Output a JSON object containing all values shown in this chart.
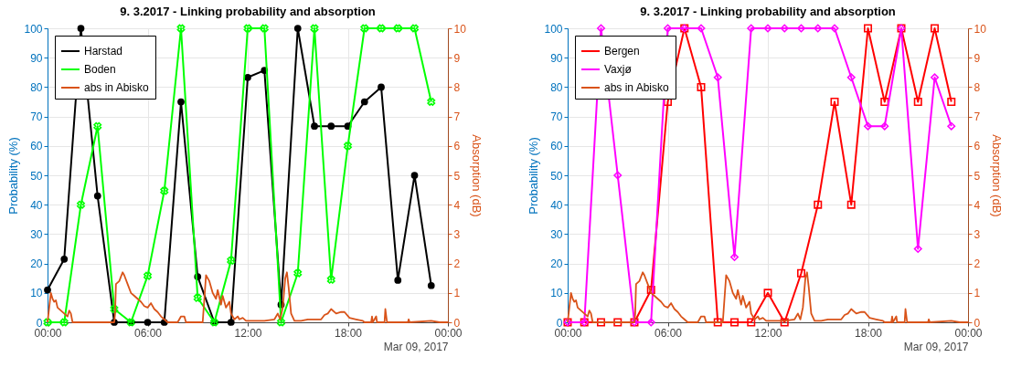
{
  "chart_data": [
    {
      "type": "line",
      "title": "9. 3.2017 - Linking probability and absorption",
      "ylabel": "Probability (%)",
      "y2label": "Absorption (dB)",
      "annotations": [
        "Mar 09, 2017"
      ],
      "xlim": [
        0,
        24
      ],
      "xticks": [
        {
          "value": 0,
          "label": "00:00"
        },
        {
          "value": 6,
          "label": "06:00"
        },
        {
          "value": 12,
          "label": "12:00"
        },
        {
          "value": 18,
          "label": "18:00"
        },
        {
          "value": 24,
          "label": "00:00"
        }
      ],
      "ylim": [
        0,
        100
      ],
      "yticks": [
        0,
        10,
        20,
        30,
        40,
        50,
        60,
        70,
        80,
        90,
        100
      ],
      "y2lim": [
        0,
        10
      ],
      "y2ticks": [
        0,
        1,
        2,
        3,
        4,
        5,
        6,
        7,
        8,
        9,
        10
      ],
      "grid": true,
      "legend": "top left",
      "x": [
        0,
        1,
        2,
        3,
        4,
        5,
        6,
        7,
        8,
        9,
        10,
        11,
        12,
        13,
        14,
        15,
        16,
        17,
        18,
        19,
        20,
        21,
        22,
        23
      ],
      "series": [
        {
          "name": "Harstad",
          "color": "#000000",
          "marker": "circle",
          "values": [
            11,
            21.5,
            100,
            43,
            0,
            0,
            0,
            0,
            75,
            15.5,
            0,
            0,
            83.3,
            85.7,
            6,
            100,
            66.7,
            66.7,
            66.7,
            75,
            80,
            14.3,
            50,
            12.5
          ]
        },
        {
          "name": "Boden",
          "color": "#00ff00",
          "marker": "cross",
          "values": [
            0,
            0,
            40,
            66.7,
            4.5,
            0,
            15.8,
            44.7,
            100,
            8.3,
            0,
            21,
            100,
            100,
            0,
            16.7,
            100,
            14.5,
            60,
            100,
            100,
            100,
            100,
            75
          ]
        },
        {
          "name": "abs in Abisko",
          "color": "#d95319",
          "marker": "none",
          "axis": "y2",
          "x": [
            0,
            0.1,
            0.2,
            0.3,
            0.4,
            0.5,
            0.6,
            0.8,
            1.0,
            1.2,
            1.3,
            1.4,
            1.5,
            4.0,
            4.05,
            4.1,
            4.3,
            4.5,
            4.6,
            4.8,
            5.0,
            5.2,
            5.4,
            5.6,
            5.8,
            6.0,
            6.2,
            6.4,
            6.6,
            6.8,
            7.0,
            7.2,
            7.8,
            8.0,
            8.2,
            8.3,
            9.3,
            9.4,
            9.5,
            9.7,
            9.9,
            10.1,
            10.2,
            10.4,
            10.5,
            10.7,
            10.9,
            11.0,
            11.2,
            11.4,
            11.5,
            11.7,
            11.9,
            12.2,
            13.0,
            13.6,
            13.8,
            13.95,
            14.1,
            14.25,
            14.35,
            14.45,
            14.6,
            14.8,
            15.2,
            15.6,
            16.0,
            16.4,
            16.6,
            16.8,
            17.0,
            17.3,
            17.6,
            17.8,
            18.1,
            18.5,
            18.9,
            19.0,
            19.4,
            19.45,
            19.5,
            19.7,
            19.75,
            20.2,
            20.25,
            20.35,
            21.6,
            21.65,
            21.7,
            23.0,
            23.5,
            24
          ],
          "values": [
            0,
            0.5,
            1.0,
            0.8,
            0.7,
            0.75,
            0.5,
            0.4,
            0.3,
            0.2,
            0.4,
            0.3,
            0,
            0,
            0.3,
            1.3,
            1.4,
            1.7,
            1.6,
            1.3,
            1.0,
            0.9,
            0.8,
            0.7,
            0.55,
            0.5,
            0.65,
            0.45,
            0.35,
            0.2,
            0.1,
            0,
            0,
            0.2,
            0.2,
            0,
            0,
            0.8,
            1.6,
            1.4,
            1.0,
            0.8,
            1.1,
            0.6,
            0.9,
            0.5,
            0.7,
            0.3,
            0.1,
            0.2,
            0.1,
            0.15,
            0.05,
            0.05,
            0.05,
            0.1,
            0.3,
            0.1,
            0.5,
            1.5,
            1.7,
            1.2,
            0.3,
            0.05,
            0.05,
            0.1,
            0.1,
            0.1,
            0.25,
            0.3,
            0.45,
            0.3,
            0.35,
            0.35,
            0.15,
            0.1,
            0.05,
            0,
            0,
            0.2,
            0,
            0.2,
            0,
            0,
            0.45,
            0,
            0,
            0.1,
            0,
            0.05,
            0,
            0
          ]
        }
      ]
    },
    {
      "type": "line",
      "title": "9. 3.2017 - Linking probability and absorption",
      "ylabel": "Probability (%)",
      "y2label": "Absorption (dB)",
      "annotations": [
        "Mar 09, 2017"
      ],
      "xlim": [
        0,
        24
      ],
      "xticks": [
        {
          "value": 0,
          "label": "00:00"
        },
        {
          "value": 6,
          "label": "06:00"
        },
        {
          "value": 12,
          "label": "12:00"
        },
        {
          "value": 18,
          "label": "18:00"
        },
        {
          "value": 24,
          "label": "00:00"
        }
      ],
      "ylim": [
        0,
        100
      ],
      "yticks": [
        0,
        10,
        20,
        30,
        40,
        50,
        60,
        70,
        80,
        90,
        100
      ],
      "y2lim": [
        0,
        10
      ],
      "y2ticks": [
        0,
        1,
        2,
        3,
        4,
        5,
        6,
        7,
        8,
        9,
        10
      ],
      "grid": true,
      "legend": "top left",
      "x": [
        0,
        1,
        2,
        3,
        4,
        5,
        6,
        7,
        8,
        9,
        10,
        11,
        12,
        13,
        14,
        15,
        16,
        17,
        18,
        19,
        20,
        21,
        22,
        23
      ],
      "series": [
        {
          "name": "Bergen",
          "color": "#ff0000",
          "marker": "square",
          "values": [
            0,
            0,
            0,
            0,
            0,
            11,
            75,
            100,
            80,
            0,
            0,
            0,
            10,
            0,
            16.7,
            40,
            75,
            40,
            100,
            75,
            100,
            75,
            100,
            75
          ]
        },
        {
          "name": "Vaxjø",
          "color": "#ff00ff",
          "marker": "diamond",
          "values": [
            0,
            0,
            100,
            50,
            0,
            0,
            100,
            100,
            100,
            83.3,
            22.2,
            100,
            100,
            100,
            100,
            100,
            100,
            83.3,
            66.7,
            66.7,
            100,
            25,
            83.3,
            66.7
          ]
        },
        {
          "name": "abs in Abisko",
          "color": "#d95319",
          "marker": "none",
          "axis": "y2",
          "x": [
            0,
            0.1,
            0.2,
            0.3,
            0.4,
            0.5,
            0.6,
            0.8,
            1.0,
            1.2,
            1.3,
            1.4,
            1.5,
            4.0,
            4.05,
            4.1,
            4.3,
            4.5,
            4.6,
            4.8,
            5.0,
            5.2,
            5.4,
            5.6,
            5.8,
            6.0,
            6.2,
            6.4,
            6.6,
            6.8,
            7.0,
            7.2,
            7.8,
            8.0,
            8.2,
            8.3,
            9.3,
            9.4,
            9.5,
            9.7,
            9.9,
            10.1,
            10.2,
            10.4,
            10.5,
            10.7,
            10.9,
            11.0,
            11.2,
            11.4,
            11.5,
            11.7,
            11.9,
            12.2,
            13.0,
            13.6,
            13.8,
            13.95,
            14.1,
            14.25,
            14.35,
            14.45,
            14.6,
            14.8,
            15.2,
            15.6,
            16.0,
            16.4,
            16.6,
            16.8,
            17.0,
            17.3,
            17.6,
            17.8,
            18.1,
            18.5,
            18.9,
            19.0,
            19.4,
            19.45,
            19.5,
            19.7,
            19.75,
            20.2,
            20.25,
            20.35,
            21.6,
            21.65,
            21.7,
            23.0,
            23.5,
            24
          ],
          "values": [
            0,
            0.5,
            1.0,
            0.8,
            0.7,
            0.75,
            0.5,
            0.4,
            0.3,
            0.2,
            0.4,
            0.3,
            0,
            0,
            0.3,
            1.3,
            1.4,
            1.7,
            1.6,
            1.3,
            1.0,
            0.9,
            0.8,
            0.7,
            0.55,
            0.5,
            0.65,
            0.45,
            0.35,
            0.2,
            0.1,
            0,
            0,
            0.2,
            0.2,
            0,
            0,
            0.8,
            1.6,
            1.4,
            1.0,
            0.8,
            1.1,
            0.6,
            0.9,
            0.5,
            0.7,
            0.3,
            0.1,
            0.2,
            0.1,
            0.15,
            0.05,
            0.05,
            0.05,
            0.1,
            0.3,
            0.1,
            0.5,
            1.5,
            1.7,
            1.2,
            0.3,
            0.05,
            0.05,
            0.1,
            0.1,
            0.1,
            0.25,
            0.3,
            0.45,
            0.3,
            0.35,
            0.35,
            0.15,
            0.1,
            0.05,
            0,
            0,
            0.2,
            0,
            0.2,
            0,
            0,
            0.45,
            0,
            0,
            0.1,
            0,
            0.05,
            0,
            0
          ]
        }
      ]
    }
  ]
}
